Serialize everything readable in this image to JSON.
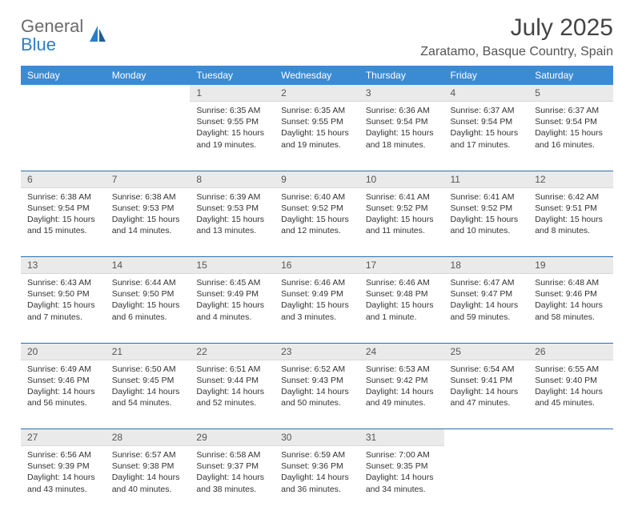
{
  "logo": {
    "general": "General",
    "blue": "Blue"
  },
  "title": "July 2025",
  "location": "Zaratamo, Basque Country, Spain",
  "colors": {
    "header_bg": "#3b8bd4",
    "header_text": "#ffffff",
    "daynum_bg": "#eaeaea",
    "week_separator": "#2a6fb0",
    "logo_gray": "#6b6b6b",
    "logo_blue": "#2a7fc9"
  },
  "weekdays": [
    "Sunday",
    "Monday",
    "Tuesday",
    "Wednesday",
    "Thursday",
    "Friday",
    "Saturday"
  ],
  "weeks": [
    [
      null,
      null,
      {
        "n": "1",
        "sr": "6:35 AM",
        "ss": "9:55 PM",
        "dl": "15 hours and 19 minutes."
      },
      {
        "n": "2",
        "sr": "6:35 AM",
        "ss": "9:55 PM",
        "dl": "15 hours and 19 minutes."
      },
      {
        "n": "3",
        "sr": "6:36 AM",
        "ss": "9:54 PM",
        "dl": "15 hours and 18 minutes."
      },
      {
        "n": "4",
        "sr": "6:37 AM",
        "ss": "9:54 PM",
        "dl": "15 hours and 17 minutes."
      },
      {
        "n": "5",
        "sr": "6:37 AM",
        "ss": "9:54 PM",
        "dl": "15 hours and 16 minutes."
      }
    ],
    [
      {
        "n": "6",
        "sr": "6:38 AM",
        "ss": "9:54 PM",
        "dl": "15 hours and 15 minutes."
      },
      {
        "n": "7",
        "sr": "6:38 AM",
        "ss": "9:53 PM",
        "dl": "15 hours and 14 minutes."
      },
      {
        "n": "8",
        "sr": "6:39 AM",
        "ss": "9:53 PM",
        "dl": "15 hours and 13 minutes."
      },
      {
        "n": "9",
        "sr": "6:40 AM",
        "ss": "9:52 PM",
        "dl": "15 hours and 12 minutes."
      },
      {
        "n": "10",
        "sr": "6:41 AM",
        "ss": "9:52 PM",
        "dl": "15 hours and 11 minutes."
      },
      {
        "n": "11",
        "sr": "6:41 AM",
        "ss": "9:52 PM",
        "dl": "15 hours and 10 minutes."
      },
      {
        "n": "12",
        "sr": "6:42 AM",
        "ss": "9:51 PM",
        "dl": "15 hours and 8 minutes."
      }
    ],
    [
      {
        "n": "13",
        "sr": "6:43 AM",
        "ss": "9:50 PM",
        "dl": "15 hours and 7 minutes."
      },
      {
        "n": "14",
        "sr": "6:44 AM",
        "ss": "9:50 PM",
        "dl": "15 hours and 6 minutes."
      },
      {
        "n": "15",
        "sr": "6:45 AM",
        "ss": "9:49 PM",
        "dl": "15 hours and 4 minutes."
      },
      {
        "n": "16",
        "sr": "6:46 AM",
        "ss": "9:49 PM",
        "dl": "15 hours and 3 minutes."
      },
      {
        "n": "17",
        "sr": "6:46 AM",
        "ss": "9:48 PM",
        "dl": "15 hours and 1 minute."
      },
      {
        "n": "18",
        "sr": "6:47 AM",
        "ss": "9:47 PM",
        "dl": "14 hours and 59 minutes."
      },
      {
        "n": "19",
        "sr": "6:48 AM",
        "ss": "9:46 PM",
        "dl": "14 hours and 58 minutes."
      }
    ],
    [
      {
        "n": "20",
        "sr": "6:49 AM",
        "ss": "9:46 PM",
        "dl": "14 hours and 56 minutes."
      },
      {
        "n": "21",
        "sr": "6:50 AM",
        "ss": "9:45 PM",
        "dl": "14 hours and 54 minutes."
      },
      {
        "n": "22",
        "sr": "6:51 AM",
        "ss": "9:44 PM",
        "dl": "14 hours and 52 minutes."
      },
      {
        "n": "23",
        "sr": "6:52 AM",
        "ss": "9:43 PM",
        "dl": "14 hours and 50 minutes."
      },
      {
        "n": "24",
        "sr": "6:53 AM",
        "ss": "9:42 PM",
        "dl": "14 hours and 49 minutes."
      },
      {
        "n": "25",
        "sr": "6:54 AM",
        "ss": "9:41 PM",
        "dl": "14 hours and 47 minutes."
      },
      {
        "n": "26",
        "sr": "6:55 AM",
        "ss": "9:40 PM",
        "dl": "14 hours and 45 minutes."
      }
    ],
    [
      {
        "n": "27",
        "sr": "6:56 AM",
        "ss": "9:39 PM",
        "dl": "14 hours and 43 minutes."
      },
      {
        "n": "28",
        "sr": "6:57 AM",
        "ss": "9:38 PM",
        "dl": "14 hours and 40 minutes."
      },
      {
        "n": "29",
        "sr": "6:58 AM",
        "ss": "9:37 PM",
        "dl": "14 hours and 38 minutes."
      },
      {
        "n": "30",
        "sr": "6:59 AM",
        "ss": "9:36 PM",
        "dl": "14 hours and 36 minutes."
      },
      {
        "n": "31",
        "sr": "7:00 AM",
        "ss": "9:35 PM",
        "dl": "14 hours and 34 minutes."
      },
      null,
      null
    ]
  ],
  "labels": {
    "sunrise": "Sunrise: ",
    "sunset": "Sunset: ",
    "daylight": "Daylight: "
  }
}
